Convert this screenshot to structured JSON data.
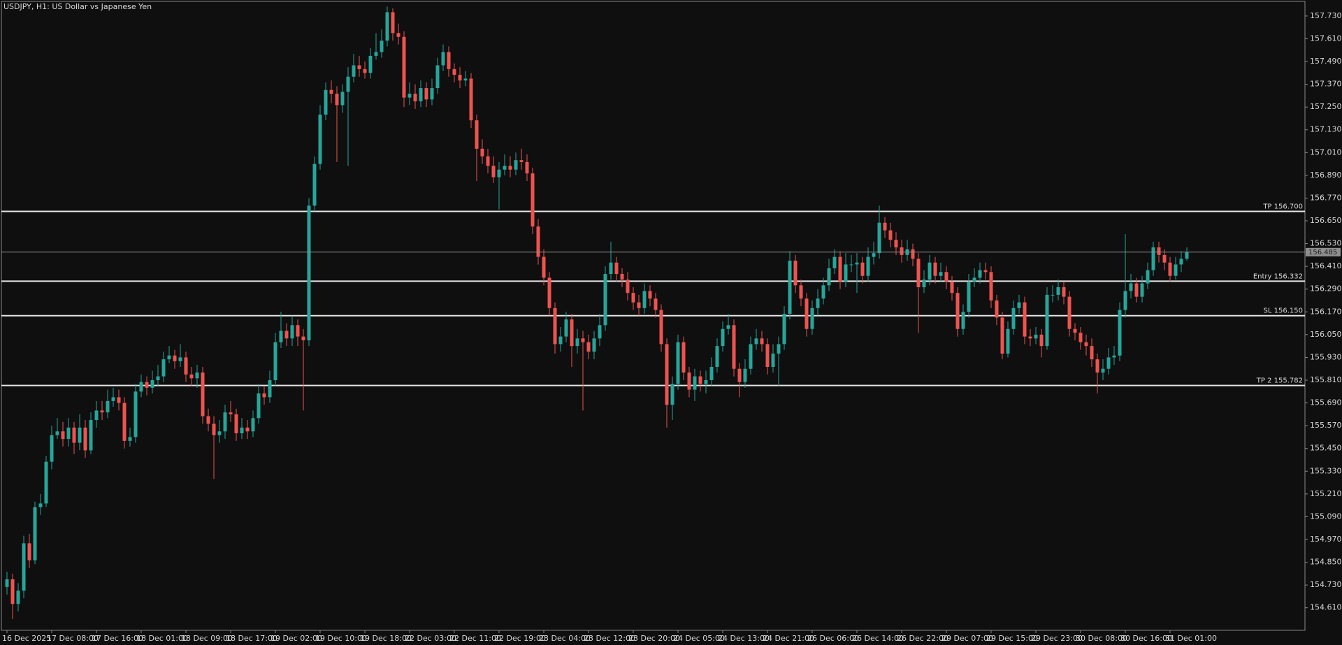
{
  "chart_data": {
    "type": "candlestick",
    "title": "USDJPY, H1:  US Dollar vs Japanese Yen",
    "bull_color": "#26a69a",
    "bear_color": "#ef5350",
    "categories": [
      "16 Dec 2025",
      null,
      null,
      null,
      null,
      null,
      null,
      null,
      "17 Dec 08:00",
      null,
      null,
      null,
      null,
      null,
      null,
      null,
      "17 Dec 16:00",
      null,
      null,
      null,
      null,
      null,
      null,
      null,
      "18 Dec 01:00",
      null,
      null,
      null,
      null,
      null,
      null,
      null,
      "18 Dec 09:00",
      null,
      null,
      null,
      null,
      null,
      null,
      null,
      "18 Dec 17:00",
      null,
      null,
      null,
      null,
      null,
      null,
      null,
      "19 Dec 02:00",
      null,
      null,
      null,
      null,
      null,
      null,
      null,
      "19 Dec 10:00",
      null,
      null,
      null,
      null,
      null,
      null,
      null,
      "19 Dec 18:00",
      null,
      null,
      null,
      null,
      null,
      null,
      null,
      "22 Dec 03:00",
      null,
      null,
      null,
      null,
      null,
      null,
      null,
      "22 Dec 11:00",
      null,
      null,
      null,
      null,
      null,
      null,
      null,
      "22 Dec 19:00",
      null,
      null,
      null,
      null,
      null,
      null,
      null,
      "23 Dec 04:00",
      null,
      null,
      null,
      null,
      null,
      null,
      null,
      "23 Dec 12:00",
      null,
      null,
      null,
      null,
      null,
      null,
      null,
      "23 Dec 20:00",
      null,
      null,
      null,
      null,
      null,
      null,
      null,
      "24 Dec 05:00",
      null,
      null,
      null,
      null,
      null,
      null,
      null,
      "24 Dec 13:00",
      null,
      null,
      null,
      null,
      null,
      null,
      null,
      "24 Dec 21:00",
      null,
      null,
      null,
      null,
      null,
      null,
      null,
      "26 Dec 06:00",
      null,
      null,
      null,
      null,
      null,
      null,
      null,
      "26 Dec 14:00",
      null,
      null,
      null,
      null,
      null,
      null,
      null,
      "26 Dec 22:00",
      null,
      null,
      null,
      null,
      null,
      null,
      null,
      "29 Dec 07:00",
      null,
      null,
      null,
      null,
      null,
      null,
      null,
      "29 Dec 15:00",
      null,
      null,
      null,
      null,
      null,
      null,
      null,
      "29 Dec 23:00",
      null,
      null,
      null,
      null,
      null,
      null,
      null,
      "30 Dec 08:00",
      null,
      null,
      null,
      null,
      null,
      null,
      null,
      "30 Dec 16:00",
      null,
      null,
      null,
      null,
      null,
      null,
      null,
      "31 Dec 01:00",
      null,
      null,
      null
    ],
    "open": [
      154.72,
      154.76,
      154.63,
      154.7,
      154.95,
      154.86,
      155.14,
      155.16,
      155.38,
      155.52,
      155.54,
      155.5,
      155.56,
      155.48,
      155.56,
      155.44,
      155.6,
      155.65,
      155.64,
      155.7,
      155.72,
      155.69,
      155.49,
      155.51,
      155.75,
      155.8,
      155.77,
      155.81,
      155.83,
      155.92,
      155.94,
      155.91,
      155.93,
      155.84,
      155.82,
      155.85,
      155.62,
      155.58,
      155.52,
      155.54,
      155.64,
      155.63,
      155.53,
      155.56,
      155.54,
      155.61,
      155.74,
      155.72,
      155.81,
      156.01,
      156.07,
      156.03,
      156.1,
      156.04,
      156.02,
      156.73,
      156.95,
      157.21,
      157.34,
      157.32,
      157.26,
      157.33,
      157.41,
      157.47,
      157.45,
      157.43,
      157.52,
      157.54,
      157.6,
      157.75,
      157.64,
      157.62,
      157.3,
      157.32,
      157.28,
      157.35,
      157.29,
      157.35,
      157.47,
      157.54,
      157.45,
      157.42,
      157.39,
      157.4,
      157.18,
      157.03,
      156.99,
      156.94,
      156.88,
      156.92,
      156.94,
      156.92,
      156.97,
      156.96,
      156.9,
      156.62,
      156.46,
      156.35,
      156.19,
      156.0,
      156.04,
      156.13,
      155.99,
      156.03,
      156.01,
      155.96,
      156.03,
      156.1,
      156.37,
      156.43,
      156.37,
      156.34,
      156.27,
      156.22,
      156.19,
      156.28,
      156.24,
      156.18,
      156.0,
      155.68,
      155.79,
      156.01,
      155.85,
      155.76,
      155.83,
      155.79,
      155.81,
      155.88,
      155.99,
      156.08,
      156.1,
      155.87,
      155.8,
      155.87,
      156.0,
      156.03,
      156.0,
      155.88,
      155.95,
      156.0,
      156.16,
      156.44,
      156.31,
      156.24,
      156.08,
      156.19,
      156.24,
      156.31,
      156.4,
      156.46,
      156.33,
      156.42,
      156.42,
      156.43,
      156.36,
      156.46,
      156.48,
      156.64,
      156.6,
      156.55,
      156.51,
      156.47,
      156.5,
      156.45,
      156.3,
      156.34,
      156.43,
      156.36,
      156.38,
      156.33,
      156.27,
      156.08,
      156.17,
      156.33,
      156.35,
      156.39,
      156.38,
      156.23,
      156.14,
      155.95,
      156.08,
      156.19,
      156.22,
      156.04,
      156.03,
      156.05,
      155.99,
      156.26,
      156.26,
      156.3,
      156.25,
      156.08,
      156.06,
      156.01,
      155.99,
      155.92,
      155.85,
      155.87,
      155.93,
      155.94,
      156.18,
      156.28,
      156.32,
      156.25,
      156.32,
      156.39,
      156.51,
      156.47,
      156.43,
      156.36,
      156.42,
      156.45
    ],
    "high": [
      154.8,
      154.79,
      154.74,
      154.99,
      155.0,
      155.17,
      155.21,
      155.41,
      155.57,
      155.61,
      155.59,
      155.61,
      155.59,
      155.63,
      155.6,
      155.64,
      155.7,
      155.7,
      155.76,
      155.77,
      155.76,
      155.72,
      155.56,
      155.79,
      155.84,
      155.83,
      155.86,
      155.89,
      155.96,
      155.99,
      155.97,
      156.0,
      155.96,
      155.88,
      155.89,
      155.88,
      155.66,
      155.62,
      155.6,
      155.68,
      155.7,
      155.66,
      155.61,
      155.6,
      155.65,
      155.79,
      155.78,
      155.86,
      156.06,
      156.17,
      156.11,
      156.15,
      156.13,
      156.08,
      156.77,
      156.99,
      157.26,
      157.38,
      157.39,
      157.36,
      157.37,
      157.46,
      157.53,
      157.52,
      157.49,
      157.56,
      157.64,
      157.66,
      157.78,
      157.77,
      157.69,
      157.65,
      157.38,
      157.37,
      157.39,
      157.38,
      157.4,
      157.51,
      157.58,
      157.57,
      157.48,
      157.46,
      157.44,
      157.43,
      157.21,
      157.08,
      157.03,
      156.99,
      156.96,
      157.0,
      156.99,
      157.01,
      157.03,
      157.0,
      156.93,
      156.66,
      156.5,
      156.38,
      156.22,
      156.09,
      156.17,
      156.16,
      156.08,
      156.07,
      156.05,
      156.07,
      156.16,
      156.41,
      156.54,
      156.46,
      156.4,
      156.38,
      156.3,
      156.26,
      156.32,
      156.31,
      156.27,
      156.21,
      156.03,
      155.83,
      156.05,
      156.04,
      155.88,
      155.87,
      155.86,
      155.86,
      155.93,
      156.03,
      156.12,
      156.16,
      156.13,
      155.9,
      155.92,
      156.04,
      156.08,
      156.07,
      156.03,
      156.0,
      156.04,
      156.2,
      156.49,
      156.47,
      156.34,
      156.27,
      156.23,
      156.29,
      156.35,
      156.45,
      156.5,
      156.49,
      156.48,
      156.47,
      156.48,
      156.46,
      156.51,
      156.54,
      156.73,
      156.67,
      156.64,
      156.59,
      156.55,
      156.55,
      156.53,
      156.48,
      156.39,
      156.47,
      156.46,
      156.43,
      156.41,
      156.36,
      156.3,
      156.21,
      156.37,
      156.4,
      156.43,
      156.43,
      156.41,
      156.26,
      156.17,
      156.12,
      156.23,
      156.26,
      156.25,
      156.08,
      156.09,
      156.08,
      156.3,
      156.31,
      156.34,
      156.33,
      156.28,
      156.11,
      156.09,
      156.05,
      156.03,
      155.95,
      155.92,
      155.98,
      155.99,
      156.22,
      156.58,
      156.37,
      156.35,
      156.36,
      156.43,
      156.54,
      156.54,
      156.5,
      156.46,
      156.46,
      156.49,
      156.51
    ],
    "low": [
      154.68,
      154.55,
      154.59,
      154.66,
      154.82,
      154.84,
      155.1,
      155.14,
      155.34,
      155.5,
      155.46,
      155.46,
      155.42,
      155.44,
      155.4,
      155.42,
      155.56,
      155.6,
      155.61,
      155.67,
      155.65,
      155.45,
      155.46,
      155.48,
      155.72,
      155.73,
      155.74,
      155.78,
      155.8,
      155.9,
      155.87,
      155.88,
      155.8,
      155.78,
      155.77,
      155.58,
      155.54,
      155.29,
      155.48,
      155.5,
      155.59,
      155.49,
      155.5,
      155.5,
      155.51,
      155.58,
      155.68,
      155.69,
      155.78,
      155.98,
      155.99,
      155.99,
      155.99,
      155.65,
      155.99,
      156.7,
      156.92,
      157.18,
      157.27,
      156.96,
      157.22,
      156.94,
      157.38,
      157.41,
      157.4,
      157.4,
      157.5,
      157.51,
      157.57,
      157.6,
      157.58,
      157.25,
      157.26,
      157.24,
      157.25,
      157.25,
      157.26,
      157.32,
      157.44,
      157.41,
      157.38,
      157.35,
      157.36,
      157.14,
      156.86,
      156.95,
      156.9,
      156.85,
      156.71,
      156.89,
      156.88,
      156.89,
      156.92,
      156.86,
      156.58,
      156.42,
      156.31,
      156.15,
      155.95,
      155.96,
      156.01,
      155.88,
      155.95,
      155.65,
      155.92,
      155.92,
      155.99,
      156.07,
      156.34,
      156.33,
      156.3,
      156.23,
      156.18,
      156.15,
      156.16,
      156.2,
      156.14,
      155.96,
      155.56,
      155.6,
      155.76,
      155.81,
      155.72,
      155.7,
      155.75,
      155.74,
      155.78,
      155.85,
      155.96,
      156.05,
      155.83,
      155.72,
      155.77,
      155.84,
      155.97,
      155.96,
      155.84,
      155.85,
      155.78,
      155.97,
      156.13,
      156.27,
      156.2,
      156.04,
      156.05,
      156.15,
      156.21,
      156.28,
      156.37,
      156.29,
      156.3,
      156.38,
      156.27,
      156.32,
      156.33,
      156.42,
      156.45,
      156.56,
      156.51,
      156.47,
      156.43,
      156.44,
      156.41,
      156.06,
      156.27,
      156.31,
      156.32,
      156.33,
      156.29,
      156.23,
      156.04,
      156.05,
      156.14,
      156.3,
      156.32,
      156.34,
      156.19,
      156.1,
      155.92,
      155.93,
      156.05,
      156.16,
      156.0,
      155.99,
      156.0,
      155.93,
      155.97,
      156.22,
      156.23,
      156.21,
      156.04,
      156.02,
      155.97,
      155.94,
      155.88,
      155.74,
      155.81,
      155.84,
      155.89,
      155.91,
      156.14,
      156.24,
      156.22,
      156.22,
      156.29,
      156.36,
      156.43,
      156.39,
      156.33,
      156.34,
      156.38,
      156.44
    ],
    "close": [
      154.76,
      154.63,
      154.7,
      154.95,
      154.86,
      155.14,
      155.16,
      155.38,
      155.52,
      155.54,
      155.5,
      155.56,
      155.48,
      155.56,
      155.44,
      155.6,
      155.65,
      155.64,
      155.7,
      155.72,
      155.69,
      155.49,
      155.51,
      155.75,
      155.8,
      155.77,
      155.81,
      155.83,
      155.92,
      155.94,
      155.91,
      155.93,
      155.84,
      155.82,
      155.85,
      155.62,
      155.58,
      155.52,
      155.54,
      155.64,
      155.63,
      155.53,
      155.56,
      155.54,
      155.61,
      155.74,
      155.72,
      155.81,
      156.01,
      156.07,
      156.03,
      156.1,
      156.04,
      156.02,
      156.73,
      156.95,
      157.21,
      157.34,
      157.32,
      157.26,
      157.33,
      157.41,
      157.47,
      157.45,
      157.43,
      157.52,
      157.54,
      157.6,
      157.75,
      157.64,
      157.62,
      157.3,
      157.32,
      157.28,
      157.35,
      157.29,
      157.35,
      157.47,
      157.54,
      157.45,
      157.42,
      157.39,
      157.4,
      157.18,
      157.03,
      156.99,
      156.94,
      156.88,
      156.92,
      156.94,
      156.92,
      156.97,
      156.96,
      156.9,
      156.62,
      156.46,
      156.35,
      156.19,
      156.0,
      156.04,
      156.13,
      155.99,
      156.03,
      156.01,
      155.96,
      156.03,
      156.1,
      156.37,
      156.43,
      156.37,
      156.34,
      156.27,
      156.22,
      156.19,
      156.28,
      156.24,
      156.18,
      156.0,
      155.68,
      155.79,
      156.01,
      155.85,
      155.76,
      155.83,
      155.79,
      155.81,
      155.88,
      155.99,
      156.08,
      156.1,
      155.87,
      155.8,
      155.87,
      156.0,
      156.03,
      156.0,
      155.88,
      155.95,
      156.0,
      156.16,
      156.44,
      156.31,
      156.24,
      156.08,
      156.19,
      156.24,
      156.31,
      156.4,
      156.46,
      156.33,
      156.42,
      156.42,
      156.43,
      156.36,
      156.46,
      156.48,
      156.64,
      156.6,
      156.55,
      156.51,
      156.47,
      156.5,
      156.45,
      156.3,
      156.34,
      156.43,
      156.36,
      156.38,
      156.33,
      156.27,
      156.08,
      156.17,
      156.33,
      156.35,
      156.39,
      156.38,
      156.23,
      156.14,
      155.95,
      156.08,
      156.19,
      156.22,
      156.04,
      156.03,
      156.05,
      155.99,
      156.26,
      156.26,
      156.3,
      156.25,
      156.08,
      156.06,
      156.01,
      155.99,
      155.92,
      155.85,
      155.87,
      155.93,
      155.94,
      156.18,
      156.28,
      156.32,
      156.25,
      156.32,
      156.39,
      156.51,
      156.47,
      156.43,
      156.36,
      156.42,
      156.45,
      156.485
    ],
    "ylim": [
      154.491,
      157.807
    ],
    "yticks": [
      {
        "value": 154.61,
        "label": "154.610"
      },
      {
        "value": 154.73,
        "label": "154.730"
      },
      {
        "value": 154.85,
        "label": "154.850"
      },
      {
        "value": 154.97,
        "label": "154.970"
      },
      {
        "value": 155.09,
        "label": "155.090"
      },
      {
        "value": 155.21,
        "label": "155.210"
      },
      {
        "value": 155.33,
        "label": "155.330"
      },
      {
        "value": 155.45,
        "label": "155.450"
      },
      {
        "value": 155.57,
        "label": "155.570"
      },
      {
        "value": 155.69,
        "label": "155.690"
      },
      {
        "value": 155.81,
        "label": "155.810"
      },
      {
        "value": 155.93,
        "label": "155.930"
      },
      {
        "value": 156.05,
        "label": "156.050"
      },
      {
        "value": 156.17,
        "label": "156.170"
      },
      {
        "value": 156.29,
        "label": "156.290"
      },
      {
        "value": 156.41,
        "label": "156.410"
      },
      {
        "value": 156.53,
        "label": "156.530"
      },
      {
        "value": 156.65,
        "label": "156.650"
      },
      {
        "value": 156.77,
        "label": "156.770"
      },
      {
        "value": 156.89,
        "label": "156.890"
      },
      {
        "value": 157.01,
        "label": "157.010"
      },
      {
        "value": 157.13,
        "label": "157.130"
      },
      {
        "value": 157.25,
        "label": "157.250"
      },
      {
        "value": 157.37,
        "label": "157.370"
      },
      {
        "value": 157.49,
        "label": "157.490"
      },
      {
        "value": 157.61,
        "label": "157.610"
      },
      {
        "value": 157.73,
        "label": "157.730"
      }
    ],
    "hlines": [
      {
        "value": 156.7,
        "label": "TP 156.700"
      },
      {
        "value": 156.332,
        "label": "Entry 156.332"
      },
      {
        "value": 156.15,
        "label": "SL 156.150"
      },
      {
        "value": 155.782,
        "label": "TP 2 155.782"
      }
    ],
    "current_price": {
      "value": 156.485,
      "label": "156.485"
    },
    "grid": false
  }
}
